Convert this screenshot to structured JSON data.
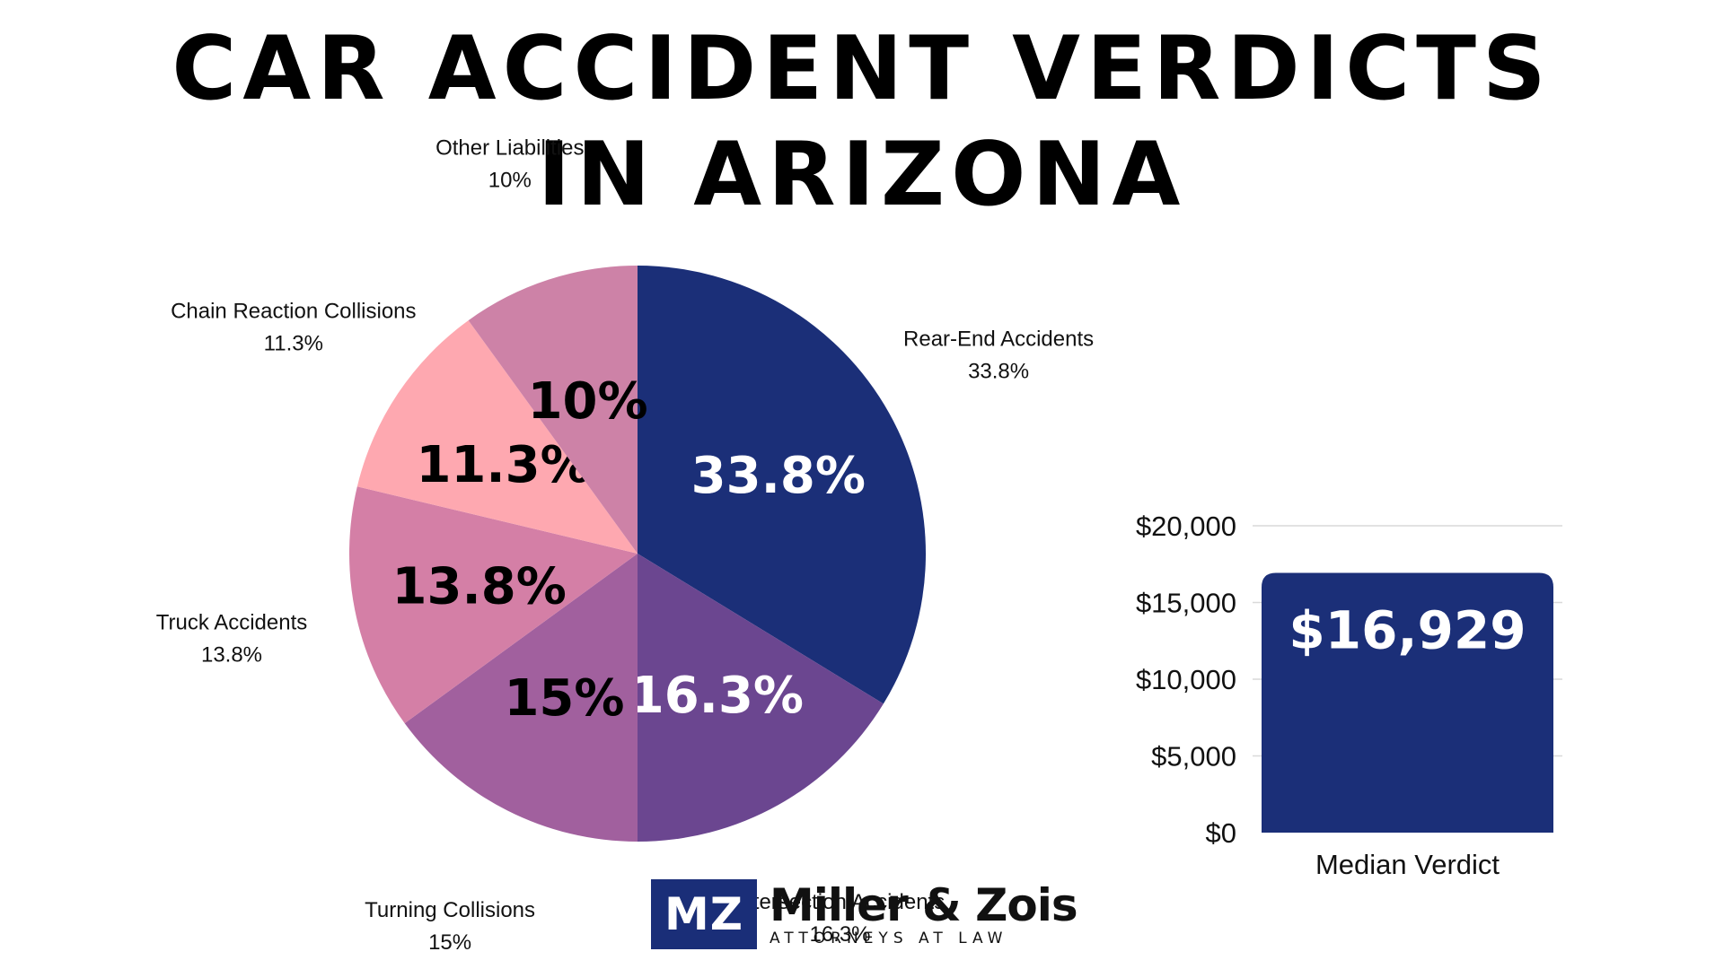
{
  "title_lines": [
    "CAR ACCIDENT VERDICTS",
    "IN ARIZONA"
  ],
  "chart_data": [
    {
      "type": "pie",
      "slices": [
        {
          "label": "Rear-End Accidents",
          "value": 33.8,
          "percent_label": "33.8%",
          "color": "#1b2f78",
          "inner_text_color": "#ffffff"
        },
        {
          "label": "Intersection Accidents",
          "value": 16.3,
          "percent_label": "16.3%",
          "color": "#6b4690",
          "inner_text_color": "#ffffff"
        },
        {
          "label": "Turning Collisions",
          "value": 15,
          "percent_label": "15%",
          "color": "#a1609e",
          "inner_text_color": "#000000"
        },
        {
          "label": "Truck Accidents",
          "value": 13.8,
          "percent_label": "13.8%",
          "color": "#d47fa6",
          "inner_text_color": "#000000"
        },
        {
          "label": "Chain Reaction Collisions",
          "value": 11.3,
          "percent_label": "11.3%",
          "color": "#fea8b0",
          "inner_text_color": "#000000"
        },
        {
          "label": "Other Liabilities",
          "value": 10,
          "percent_label": "10%",
          "color": "#cd82a7",
          "inner_text_color": "#000000"
        }
      ]
    },
    {
      "type": "bar",
      "categories": [
        "Median Verdict"
      ],
      "values": [
        16929
      ],
      "value_labels": [
        "$16,929"
      ],
      "ylim": [
        0,
        20000
      ],
      "y_ticks": [
        0,
        5000,
        10000,
        15000,
        20000
      ],
      "y_tick_labels": [
        "$0",
        "$5,000",
        "$10,000",
        "$15,000",
        "$20,000"
      ],
      "color": "#1b2f78",
      "grid": true
    }
  ],
  "logo": {
    "monogram": "MZ",
    "name": "Miller & Zois",
    "tagline": "ATTORNEYS AT LAW"
  }
}
